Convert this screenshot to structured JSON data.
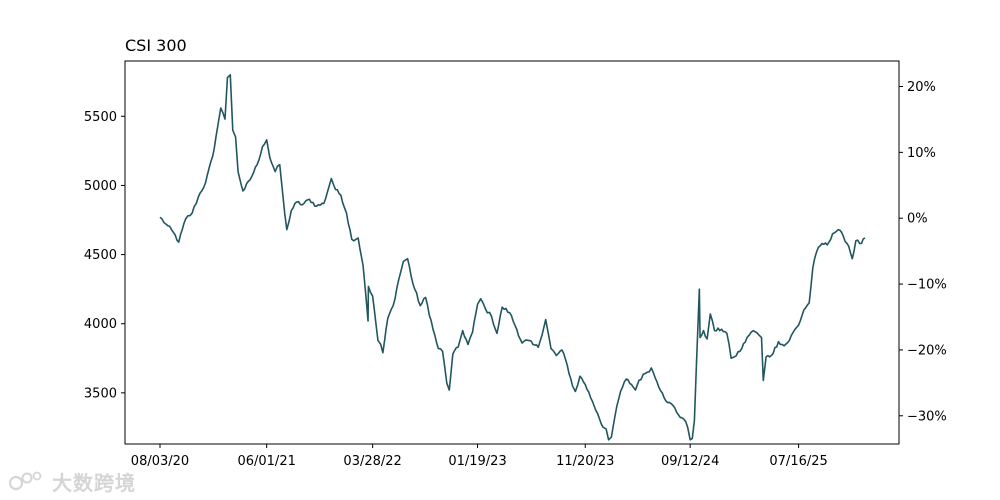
{
  "chart_data": {
    "type": "line",
    "title": "CSI 300",
    "xlabel": "",
    "ylabel": "",
    "x_tick_labels": [
      "08/03/20",
      "06/01/21",
      "03/28/22",
      "01/19/23",
      "11/20/23",
      "09/12/24",
      "07/16/25"
    ],
    "y_ticks": [
      3500,
      4000,
      4500,
      5000,
      5500
    ],
    "y_tick_labels": [
      "3500",
      "4000",
      "4500",
      "5000",
      "5500"
    ],
    "ylim": [
      3130,
      5900
    ],
    "y2_ticks": [
      -30,
      -20,
      -10,
      0,
      10,
      20
    ],
    "y2_tick_labels": [
      "−30%",
      "−20%",
      "−10%",
      "0%",
      "10%",
      "20%"
    ],
    "y2_base": 4763,
    "grid": false,
    "legend": "none",
    "line_color": "#22565f",
    "series": [
      {
        "x": [
          "08/03/20",
          "08/20/20",
          "09/10/20",
          "09/25/20",
          "10/15/20",
          "11/02/20",
          "11/20/20",
          "12/10/20",
          "12/30/20",
          "01/13/21",
          "01/22/21",
          "02/03/21",
          "02/10/21",
          "02/18/21",
          "02/25/21",
          "03/05/21",
          "03/12/21",
          "03/26/21",
          "04/15/21",
          "05/05/21",
          "05/20/21",
          "06/01/21",
          "06/10/21",
          "06/25/21",
          "07/08/21",
          "07/22/21",
          "07/28/21",
          "08/10/21",
          "08/25/21",
          "09/10/21",
          "09/30/21",
          "10/20/21",
          "11/10/21",
          "12/01/21",
          "12/13/21",
          "12/28/21",
          "01/13/22",
          "01/28/22",
          "02/15/22",
          "03/01/22",
          "03/09/22",
          "03/15/22",
          "03/16/22",
          "03/28/22",
          "04/12/22",
          "04/20/22",
          "04/26/22",
          "05/10/22",
          "05/25/22",
          "06/10/22",
          "06/23/22",
          "07/05/22",
          "07/20/22",
          "08/10/22",
          "08/25/22",
          "09/15/22",
          "09/30/22",
          "10/12/22",
          "10/24/22",
          "10/31/22",
          "11/10/22",
          "11/25/22",
          "12/08/22",
          "12/23/22",
          "01/05/23",
          "01/19/23",
          "01/28/23",
          "02/10/23",
          "02/28/23",
          "03/15/23",
          "03/30/23",
          "04/20/23",
          "05/10/23",
          "05/25/23",
          "06/10/23",
          "06/25/23",
          "07/10/23",
          "07/31/23",
          "08/15/23",
          "08/30/23",
          "09/15/23",
          "09/30/23",
          "10/15/23",
          "10/23/23",
          "11/05/23",
          "11/20/23",
          "12/10/23",
          "12/25/23",
          "01/10/24",
          "01/18/24",
          "01/25/24",
          "02/02/24",
          "02/12/24",
          "02/28/24",
          "03/15/24",
          "03/30/24",
          "04/10/24",
          "04/20/24",
          "05/08/24",
          "05/25/24",
          "06/10/24",
          "06/25/24",
          "07/10/24",
          "07/25/24",
          "08/10/24",
          "08/25/24",
          "09/05/24",
          "09/12/24",
          "09/18/24",
          "09/24/24",
          "09/30/24",
          "10/08/24",
          "10/10/24",
          "10/20/24",
          "10/30/24",
          "11/08/24",
          "11/20/24",
          "12/10/24",
          "12/25/24",
          "01/06/25",
          "01/15/25",
          "02/05/25",
          "02/20/25",
          "03/10/25",
          "03/25/25",
          "04/02/25",
          "04/07/25",
          "04/15/25",
          "04/30/25",
          "05/20/25",
          "06/05/25",
          "06/20/25",
          "07/01/25",
          "07/16/25",
          "07/31/25",
          "08/15/25",
          "08/25/25",
          "09/05/25",
          "09/20/25",
          "10/05/25",
          "10/20/25",
          "11/05/25",
          "11/20/25",
          "12/05/25",
          "12/15/25",
          "12/25/25",
          "01/10/26",
          "01/20/26"
        ],
        "values": [
          4770,
          4720,
          4660,
          4590,
          4760,
          4800,
          4920,
          5020,
          5210,
          5420,
          5560,
          5480,
          5780,
          5800,
          5400,
          5350,
          5100,
          4960,
          5040,
          5150,
          5280,
          5330,
          5200,
          5100,
          5150,
          4800,
          4680,
          4820,
          4880,
          4860,
          4900,
          4850,
          4870,
          5050,
          4970,
          4930,
          4800,
          4610,
          4620,
          4420,
          4200,
          4020,
          4270,
          4200,
          3880,
          3850,
          3790,
          4040,
          4130,
          4320,
          4450,
          4470,
          4290,
          4130,
          4190,
          3960,
          3820,
          3800,
          3570,
          3520,
          3780,
          3830,
          3950,
          3850,
          3940,
          4140,
          4180,
          4110,
          4050,
          3930,
          4120,
          4080,
          3960,
          3860,
          3880,
          3850,
          3830,
          4030,
          3820,
          3770,
          3810,
          3700,
          3550,
          3510,
          3620,
          3560,
          3440,
          3350,
          3250,
          3240,
          3160,
          3180,
          3330,
          3510,
          3600,
          3560,
          3520,
          3590,
          3640,
          3680,
          3580,
          3500,
          3430,
          3410,
          3340,
          3310,
          3250,
          3160,
          3170,
          3300,
          3720,
          4250,
          3900,
          3950,
          3890,
          4070,
          3950,
          3960,
          3930,
          3750,
          3760,
          3820,
          3900,
          3950,
          3920,
          3900,
          3590,
          3760,
          3770,
          3870,
          3840,
          3880,
          3940,
          3990,
          4100,
          4150,
          4400,
          4520,
          4580,
          4570,
          4650,
          4680,
          4630,
          4560,
          4470,
          4600,
          4580,
          4620
        ]
      }
    ]
  },
  "watermark": {
    "text": "大数跨境",
    "icon": "brand-logo-icon"
  }
}
